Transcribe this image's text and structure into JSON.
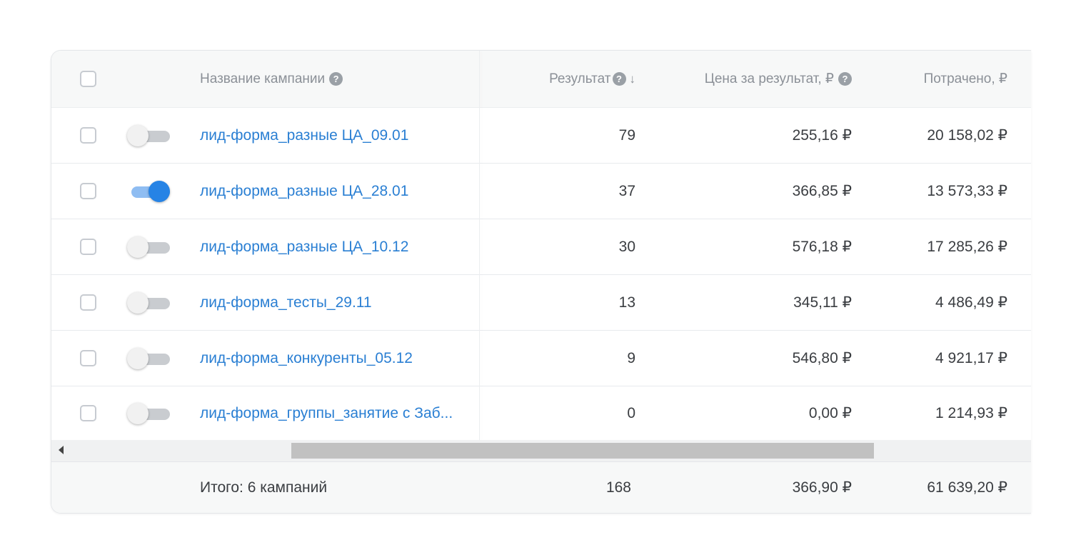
{
  "header": {
    "name_label": "Название кампании",
    "result_label": "Результат",
    "sort_indicator": "↓",
    "price_label": "Цена за результат, ₽",
    "spent_label": "Потрачено, ₽",
    "help_icon": "?"
  },
  "rows": [
    {
      "name": "лид-форма_разные ЦА_09.01",
      "active": false,
      "result": "79",
      "price": "255,16 ₽",
      "spent": "20 158,02 ₽"
    },
    {
      "name": "лид-форма_разные ЦА_28.01",
      "active": true,
      "result": "37",
      "price": "366,85 ₽",
      "spent": "13 573,33 ₽"
    },
    {
      "name": "лид-форма_разные ЦА_10.12",
      "active": false,
      "result": "30",
      "price": "576,18 ₽",
      "spent": "17 285,26 ₽"
    },
    {
      "name": "лид-форма_тесты_29.11",
      "active": false,
      "result": "13",
      "price": "345,11 ₽",
      "spent": "4 486,49 ₽"
    },
    {
      "name": "лид-форма_конкуренты_05.12",
      "active": false,
      "result": "9",
      "price": "546,80 ₽",
      "spent": "4 921,17 ₽"
    },
    {
      "name": "лид-форма_группы_занятие с Заб...",
      "active": false,
      "result": "0",
      "price": "0,00 ₽",
      "spent": "1 214,93 ₽"
    }
  ],
  "footer": {
    "total_label": "Итого: 6 кампаний",
    "result": "168",
    "price": "366,90 ₽",
    "spent": "61 639,20 ₽"
  },
  "colors": {
    "link": "#2a7fd3",
    "toggle_on": "#2683e5"
  }
}
